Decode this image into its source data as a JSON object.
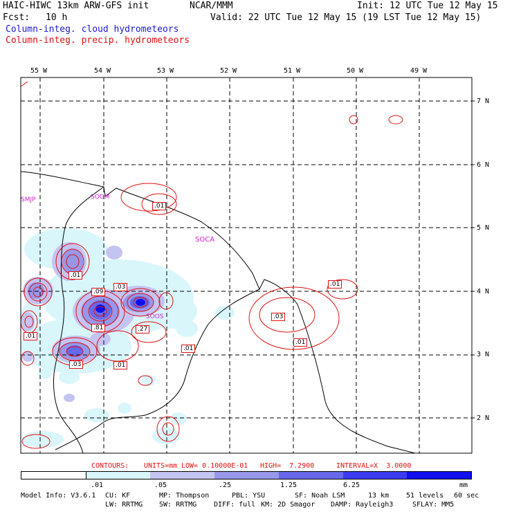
{
  "header": {
    "model_title": "HAIC-HIWC 13km ARW-GFS init",
    "org": "NCAR/MMM",
    "init": "Init: 12 UTC Tue 12 May 15",
    "fcst_label": "Fcst:",
    "fcst_value": "10 h",
    "valid": "Valid: 22 UTC Tue 12 May 15 (19 LST Tue 12 May 15)",
    "field1": "Column-integ. cloud hydrometeors",
    "field2": "Column-integ. precip. hydrometeors"
  },
  "map": {
    "lon_labels": [
      "55 W",
      "54 W",
      "53 W",
      "52 W",
      "51 W",
      "50 W",
      "49 W"
    ],
    "lat_labels": [
      "7 N",
      "6 N",
      "5 N",
      "4 N",
      "3 N",
      "2 N"
    ],
    "stations": [
      "SMJP",
      "SOGM",
      "SOCA",
      "SOOS"
    ],
    "contour_labels": [
      ".01",
      ".01",
      ".09",
      ".03",
      ".81",
      ".27",
      ".01",
      ".01",
      ".03",
      ".01",
      ".01",
      ".03",
      ".01"
    ]
  },
  "contour_info": {
    "contours": "CONTOURS:",
    "units": "UNITS=mm",
    "low": "LOW= 0.10000E-01",
    "high": "HIGH=  7.2900",
    "interval": "INTERVAL=X  3.0000"
  },
  "colorbar": {
    "ticks": [
      ".01",
      ".05",
      ".25",
      "1.25",
      "6.25"
    ],
    "unit": "mm",
    "colors": [
      "#ffffff",
      "#d9f6fb",
      "#c4c4f2",
      "#9797ea",
      "#6868ea",
      "#3b3bf0",
      "#1010ee"
    ]
  },
  "model_info": {
    "line1": [
      "Model Info: V3.6.1",
      "CU: KF",
      "MP: Thompson",
      "PBL: YSU",
      "SF: Noah LSM",
      "13 km",
      "51 levels",
      "60 sec"
    ],
    "line2": [
      "LW: RRTMG",
      "SW: RRTMG",
      "DIFF: full",
      "KM: 2D Smagor",
      "DAMP: Rayleigh3",
      "SFLAY: MM5"
    ]
  }
}
